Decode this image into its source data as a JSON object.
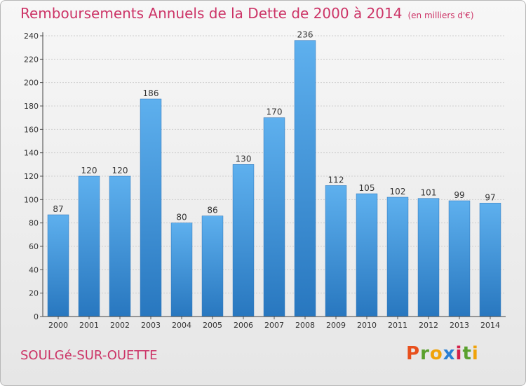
{
  "chart_data": {
    "type": "bar",
    "title": "Remboursements Annuels de la Dette de 2000 à 2014",
    "unit_label": "(en milliers d'€)",
    "categories": [
      "2000",
      "2001",
      "2002",
      "2003",
      "2004",
      "2005",
      "2006",
      "2007",
      "2008",
      "2009",
      "2010",
      "2011",
      "2012",
      "2013",
      "2014"
    ],
    "values": [
      87,
      120,
      120,
      186,
      80,
      86,
      130,
      170,
      236,
      112,
      105,
      102,
      101,
      99,
      97
    ],
    "ylim": [
      0,
      240
    ],
    "yticks": [
      0,
      20,
      40,
      60,
      80,
      100,
      120,
      140,
      160,
      180,
      200,
      220,
      240
    ],
    "grid": true,
    "bar_color": "#3a8fd8",
    "title_color": "#cc3366"
  },
  "footer": {
    "place": "SOULGé-SUR-OUETTE",
    "logo_letters": [
      "P",
      "r",
      "o",
      "x",
      "i",
      "t",
      "i"
    ],
    "logo_colors": [
      "#e8501d",
      "#5aa02c",
      "#f0a30a",
      "#2a7fd4",
      "#d4204a",
      "#5aa02c",
      "#f0a30a"
    ]
  }
}
